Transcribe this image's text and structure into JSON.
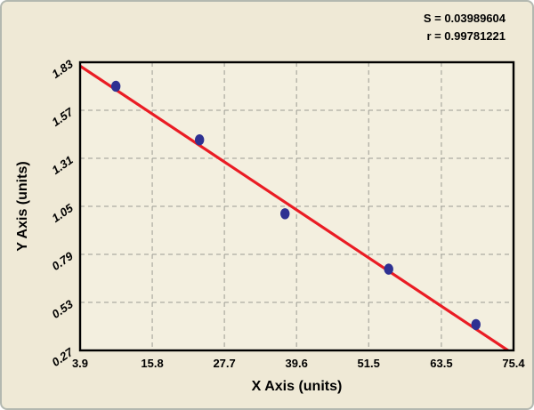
{
  "chart_data": {
    "type": "scatter",
    "title": "",
    "xlabel": "X Axis (units)",
    "ylabel": "Y Axis (units)",
    "annotations": {
      "s": "S = 0.03989604",
      "r": "r = 0.99781221"
    },
    "x_ticks": [
      "3.9",
      "15.8",
      "27.7",
      "39.6",
      "51.5",
      "63.5",
      "75.4"
    ],
    "y_ticks": [
      "0.27",
      "0.53",
      "0.79",
      "1.05",
      "1.31",
      "1.57",
      "1.83"
    ],
    "xlim": [
      3.9,
      75.4
    ],
    "ylim": [
      0.27,
      1.83
    ],
    "grid": "dashed",
    "legend_position": "none",
    "points": [
      {
        "x": 9.8,
        "y": 1.7
      },
      {
        "x": 23.6,
        "y": 1.41
      },
      {
        "x": 37.7,
        "y": 1.01
      },
      {
        "x": 54.8,
        "y": 0.71
      },
      {
        "x": 69.2,
        "y": 0.41
      }
    ],
    "regression_line": {
      "x1": 3.9,
      "y1": 1.81,
      "x2": 75.4,
      "y2": 0.25
    },
    "colors": {
      "figure_bg": "#efe9d6",
      "plot_bg": "#f3efdf",
      "grid": "#9b9b93",
      "line": "#ea1c24",
      "point": "#2e3192",
      "text": "#000000",
      "border": "#000000"
    }
  }
}
